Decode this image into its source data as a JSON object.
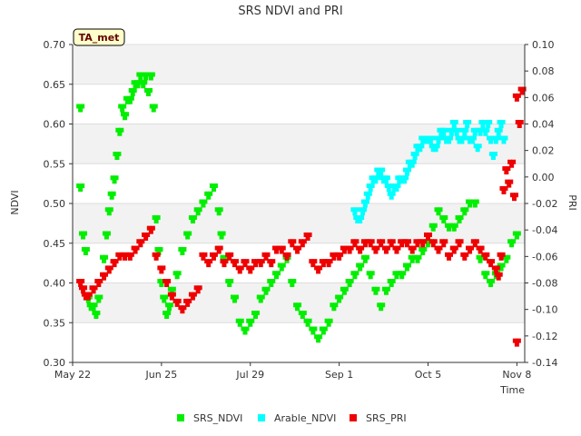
{
  "chart_data": {
    "type": "scatter",
    "title": "SRS NDVI and PRI",
    "badge": "TA_met",
    "xlabel": "Time",
    "ylabel": "NDVI",
    "y2label": "PRI",
    "xlim": [
      0,
      173
    ],
    "ylim": [
      0.3,
      0.7
    ],
    "y2lim": [
      -0.14,
      0.1
    ],
    "x_ticks": [
      {
        "label": "May 22",
        "value": 0
      },
      {
        "label": "Jun 25",
        "value": 34
      },
      {
        "label": "Jul 29",
        "value": 68
      },
      {
        "label": "Sep 1",
        "value": 102
      },
      {
        "label": "Oct 5",
        "value": 136
      },
      {
        "label": "Nov 8",
        "value": 170
      }
    ],
    "y_ticks": [
      "0.30",
      "0.35",
      "0.40",
      "0.45",
      "0.50",
      "0.55",
      "0.60",
      "0.65",
      "0.70"
    ],
    "y2_ticks": [
      "-0.14",
      "-0.12",
      "-0.10",
      "-0.08",
      "-0.06",
      "-0.04",
      "-0.02",
      "0.00",
      "0.02",
      "0.04",
      "0.06",
      "0.08",
      "0.10"
    ],
    "grid": true,
    "legend_position": "bottom",
    "series": [
      {
        "name": "SRS_NDVI",
        "axis": "left",
        "color": "#00ee00",
        "points": [
          [
            3,
            0.62
          ],
          [
            3,
            0.52
          ],
          [
            4,
            0.46
          ],
          [
            5,
            0.44
          ],
          [
            6,
            0.38
          ],
          [
            7,
            0.37
          ],
          [
            8,
            0.37
          ],
          [
            9,
            0.36
          ],
          [
            10,
            0.38
          ],
          [
            12,
            0.43
          ],
          [
            13,
            0.46
          ],
          [
            14,
            0.49
          ],
          [
            15,
            0.51
          ],
          [
            16,
            0.53
          ],
          [
            17,
            0.56
          ],
          [
            18,
            0.59
          ],
          [
            19,
            0.62
          ],
          [
            20,
            0.61
          ],
          [
            21,
            0.63
          ],
          [
            22,
            0.63
          ],
          [
            23,
            0.64
          ],
          [
            24,
            0.65
          ],
          [
            25,
            0.65
          ],
          [
            26,
            0.66
          ],
          [
            27,
            0.65
          ],
          [
            28,
            0.66
          ],
          [
            29,
            0.64
          ],
          [
            30,
            0.66
          ],
          [
            31,
            0.62
          ],
          [
            32,
            0.48
          ],
          [
            33,
            0.44
          ],
          [
            34,
            0.4
          ],
          [
            35,
            0.38
          ],
          [
            36,
            0.36
          ],
          [
            37,
            0.37
          ],
          [
            38,
            0.39
          ],
          [
            40,
            0.41
          ],
          [
            42,
            0.44
          ],
          [
            44,
            0.46
          ],
          [
            46,
            0.48
          ],
          [
            48,
            0.49
          ],
          [
            50,
            0.5
          ],
          [
            52,
            0.51
          ],
          [
            54,
            0.52
          ],
          [
            56,
            0.49
          ],
          [
            57,
            0.46
          ],
          [
            58,
            0.43
          ],
          [
            60,
            0.4
          ],
          [
            62,
            0.38
          ],
          [
            64,
            0.35
          ],
          [
            66,
            0.34
          ],
          [
            68,
            0.35
          ],
          [
            70,
            0.36
          ],
          [
            72,
            0.38
          ],
          [
            74,
            0.39
          ],
          [
            76,
            0.4
          ],
          [
            78,
            0.41
          ],
          [
            80,
            0.42
          ],
          [
            82,
            0.43
          ],
          [
            84,
            0.4
          ],
          [
            86,
            0.37
          ],
          [
            88,
            0.36
          ],
          [
            90,
            0.35
          ],
          [
            92,
            0.34
          ],
          [
            94,
            0.33
          ],
          [
            96,
            0.34
          ],
          [
            98,
            0.35
          ],
          [
            100,
            0.37
          ],
          [
            102,
            0.38
          ],
          [
            104,
            0.39
          ],
          [
            106,
            0.4
          ],
          [
            108,
            0.41
          ],
          [
            110,
            0.42
          ],
          [
            112,
            0.43
          ],
          [
            114,
            0.41
          ],
          [
            116,
            0.39
          ],
          [
            118,
            0.37
          ],
          [
            120,
            0.39
          ],
          [
            122,
            0.4
          ],
          [
            124,
            0.41
          ],
          [
            126,
            0.41
          ],
          [
            128,
            0.42
          ],
          [
            130,
            0.43
          ],
          [
            132,
            0.43
          ],
          [
            134,
            0.44
          ],
          [
            136,
            0.45
          ],
          [
            138,
            0.47
          ],
          [
            140,
            0.49
          ],
          [
            142,
            0.48
          ],
          [
            144,
            0.47
          ],
          [
            146,
            0.47
          ],
          [
            148,
            0.48
          ],
          [
            150,
            0.49
          ],
          [
            152,
            0.5
          ],
          [
            154,
            0.5
          ],
          [
            156,
            0.43
          ],
          [
            158,
            0.41
          ],
          [
            160,
            0.4
          ],
          [
            162,
            0.41
          ],
          [
            164,
            0.42
          ],
          [
            166,
            0.43
          ],
          [
            168,
            0.45
          ],
          [
            170,
            0.46
          ]
        ]
      },
      {
        "name": "Arable_NDVI",
        "axis": "left",
        "color": "#00ffff",
        "points": [
          [
            108,
            0.49
          ],
          [
            109,
            0.48
          ],
          [
            110,
            0.48
          ],
          [
            111,
            0.49
          ],
          [
            112,
            0.5
          ],
          [
            113,
            0.51
          ],
          [
            114,
            0.52
          ],
          [
            115,
            0.53
          ],
          [
            116,
            0.53
          ],
          [
            117,
            0.54
          ],
          [
            118,
            0.54
          ],
          [
            119,
            0.53
          ],
          [
            120,
            0.53
          ],
          [
            121,
            0.52
          ],
          [
            122,
            0.51
          ],
          [
            123,
            0.52
          ],
          [
            124,
            0.52
          ],
          [
            125,
            0.53
          ],
          [
            126,
            0.53
          ],
          [
            127,
            0.53
          ],
          [
            128,
            0.54
          ],
          [
            129,
            0.55
          ],
          [
            130,
            0.55
          ],
          [
            131,
            0.56
          ],
          [
            132,
            0.57
          ],
          [
            133,
            0.57
          ],
          [
            134,
            0.58
          ],
          [
            135,
            0.58
          ],
          [
            136,
            0.58
          ],
          [
            137,
            0.58
          ],
          [
            138,
            0.57
          ],
          [
            139,
            0.57
          ],
          [
            140,
            0.58
          ],
          [
            141,
            0.59
          ],
          [
            142,
            0.59
          ],
          [
            143,
            0.58
          ],
          [
            144,
            0.58
          ],
          [
            145,
            0.59
          ],
          [
            146,
            0.6
          ],
          [
            147,
            0.59
          ],
          [
            148,
            0.58
          ],
          [
            149,
            0.58
          ],
          [
            150,
            0.59
          ],
          [
            151,
            0.6
          ],
          [
            152,
            0.58
          ],
          [
            153,
            0.58
          ],
          [
            154,
            0.59
          ],
          [
            155,
            0.57
          ],
          [
            156,
            0.59
          ],
          [
            157,
            0.6
          ],
          [
            158,
            0.59
          ],
          [
            159,
            0.6
          ],
          [
            160,
            0.58
          ],
          [
            161,
            0.56
          ],
          [
            162,
            0.58
          ],
          [
            163,
            0.59
          ],
          [
            164,
            0.6
          ],
          [
            165,
            0.58
          ]
        ]
      },
      {
        "name": "SRS_PRI",
        "axis": "right",
        "color": "#ee0000",
        "points": [
          [
            3,
            -0.08
          ],
          [
            4,
            -0.085
          ],
          [
            5,
            -0.09
          ],
          [
            6,
            -0.09
          ],
          [
            8,
            -0.085
          ],
          [
            10,
            -0.08
          ],
          [
            12,
            -0.075
          ],
          [
            14,
            -0.07
          ],
          [
            16,
            -0.065
          ],
          [
            18,
            -0.06
          ],
          [
            20,
            -0.06
          ],
          [
            22,
            -0.06
          ],
          [
            24,
            -0.055
          ],
          [
            26,
            -0.05
          ],
          [
            28,
            -0.045
          ],
          [
            30,
            -0.04
          ],
          [
            32,
            -0.06
          ],
          [
            34,
            -0.07
          ],
          [
            36,
            -0.08
          ],
          [
            38,
            -0.09
          ],
          [
            40,
            -0.095
          ],
          [
            42,
            -0.1
          ],
          [
            44,
            -0.095
          ],
          [
            46,
            -0.09
          ],
          [
            48,
            -0.085
          ],
          [
            50,
            -0.06
          ],
          [
            52,
            -0.065
          ],
          [
            54,
            -0.06
          ],
          [
            56,
            -0.055
          ],
          [
            58,
            -0.065
          ],
          [
            60,
            -0.06
          ],
          [
            62,
            -0.065
          ],
          [
            64,
            -0.07
          ],
          [
            66,
            -0.065
          ],
          [
            68,
            -0.07
          ],
          [
            70,
            -0.065
          ],
          [
            72,
            -0.065
          ],
          [
            74,
            -0.06
          ],
          [
            76,
            -0.065
          ],
          [
            78,
            -0.055
          ],
          [
            80,
            -0.055
          ],
          [
            82,
            -0.06
          ],
          [
            84,
            -0.05
          ],
          [
            86,
            -0.055
          ],
          [
            88,
            -0.05
          ],
          [
            90,
            -0.045
          ],
          [
            92,
            -0.065
          ],
          [
            94,
            -0.07
          ],
          [
            96,
            -0.065
          ],
          [
            98,
            -0.065
          ],
          [
            100,
            -0.06
          ],
          [
            102,
            -0.06
          ],
          [
            104,
            -0.055
          ],
          [
            106,
            -0.055
          ],
          [
            108,
            -0.05
          ],
          [
            110,
            -0.055
          ],
          [
            112,
            -0.05
          ],
          [
            114,
            -0.05
          ],
          [
            116,
            -0.055
          ],
          [
            118,
            -0.05
          ],
          [
            120,
            -0.055
          ],
          [
            122,
            -0.05
          ],
          [
            124,
            -0.055
          ],
          [
            126,
            -0.05
          ],
          [
            128,
            -0.05
          ],
          [
            130,
            -0.055
          ],
          [
            132,
            -0.05
          ],
          [
            134,
            -0.05
          ],
          [
            136,
            -0.045
          ],
          [
            138,
            -0.05
          ],
          [
            140,
            -0.055
          ],
          [
            142,
            -0.05
          ],
          [
            144,
            -0.06
          ],
          [
            146,
            -0.055
          ],
          [
            148,
            -0.05
          ],
          [
            150,
            -0.06
          ],
          [
            152,
            -0.055
          ],
          [
            154,
            -0.05
          ],
          [
            156,
            -0.055
          ],
          [
            158,
            -0.06
          ],
          [
            160,
            -0.065
          ],
          [
            162,
            -0.07
          ],
          [
            163,
            -0.075
          ],
          [
            164,
            -0.06
          ],
          [
            165,
            -0.01
          ],
          [
            166,
            0.005
          ],
          [
            167,
            -0.005
          ],
          [
            168,
            0.01
          ],
          [
            169,
            -0.015
          ],
          [
            170,
            0.06
          ],
          [
            171,
            0.04
          ],
          [
            172,
            0.065
          ],
          [
            170,
            -0.125
          ]
        ]
      }
    ]
  }
}
